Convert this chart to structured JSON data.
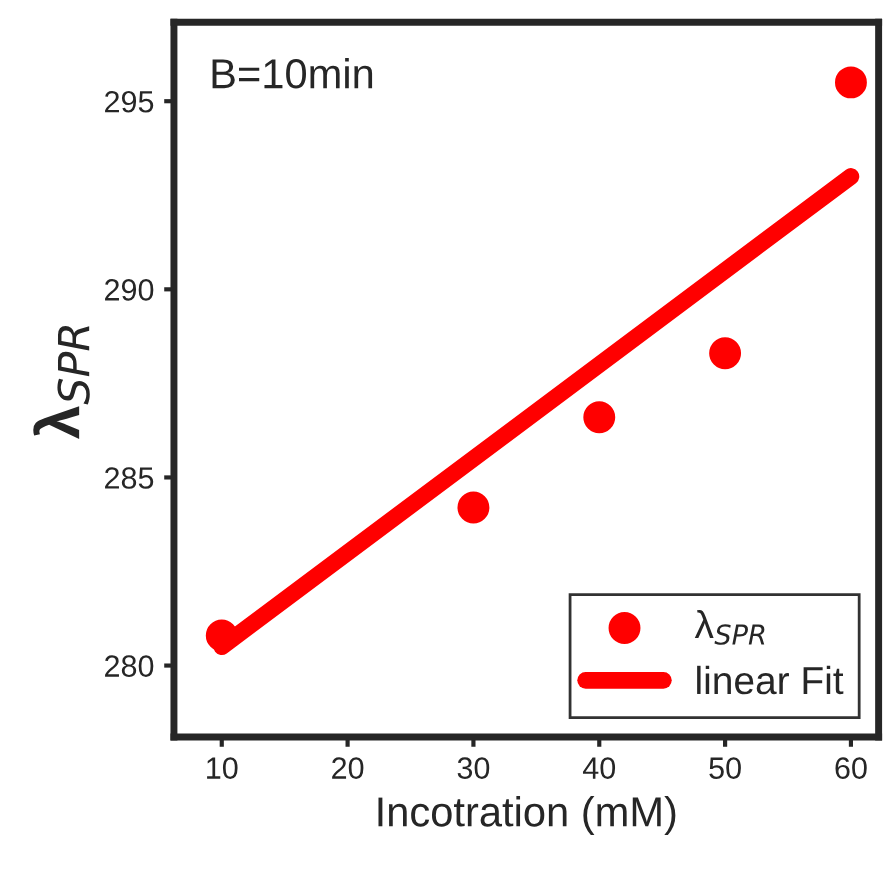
{
  "chart_data": {
    "type": "scatter",
    "xlabel": "Incotration (mM)",
    "ylabel": "λ$_{SPR}$",
    "annotations": [
      "B=10min"
    ],
    "series": [
      {
        "name": "λ$_{SPR}$",
        "color": "#ff0000",
        "marker": "circle",
        "x": [
          10,
          30,
          40,
          50,
          60
        ],
        "values": [
          280.8,
          284.2,
          286.6,
          288.3,
          295.5
        ]
      },
      {
        "name": "linear Fit",
        "type": "line",
        "color": "#ff0000",
        "marker": "none",
        "x": [
          10,
          60
        ],
        "values": [
          280.5,
          293.0
        ]
      }
    ],
    "xlim": [
      6.2,
      62.2
    ],
    "ylim": [
      278.1,
      297.1
    ],
    "xticks": [
      10,
      20,
      30,
      40,
      50,
      60
    ],
    "yticks": [
      280,
      285,
      290,
      295
    ],
    "grid": false,
    "legend": "bottom right"
  }
}
